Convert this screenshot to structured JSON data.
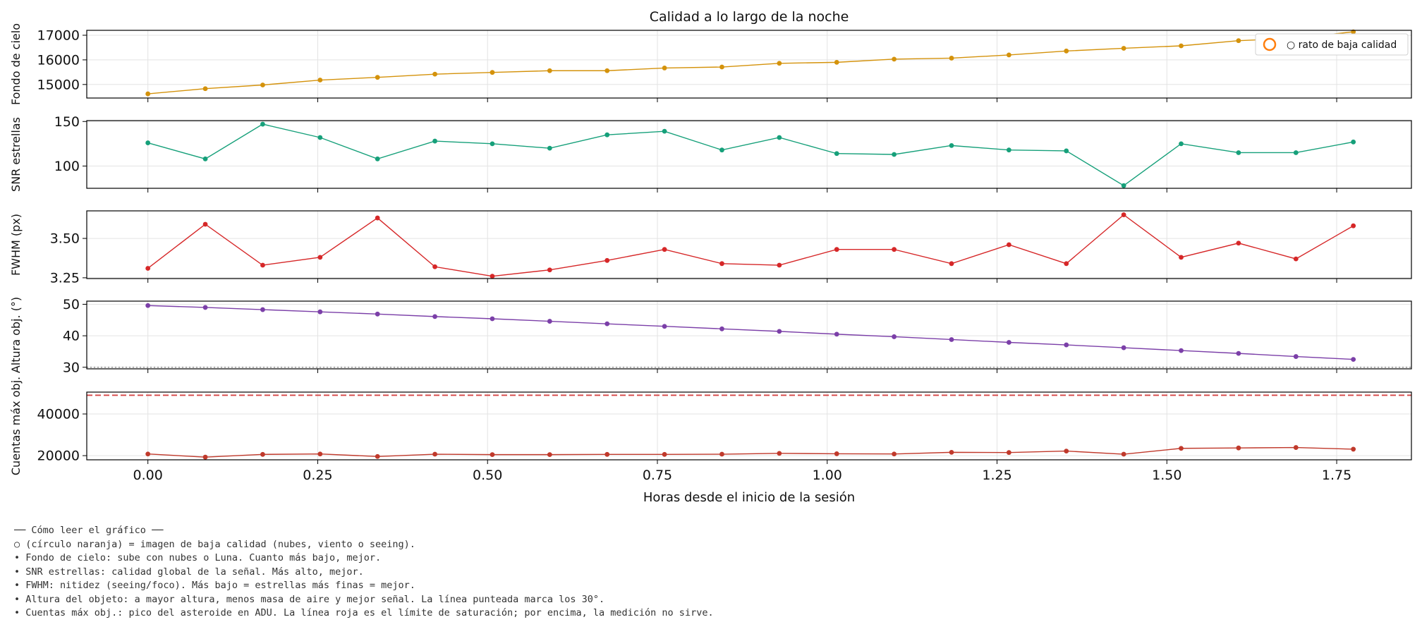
{
  "colors": {
    "sky": "#d4920b",
    "snr": "#16a07a",
    "fwhm": "#d62728",
    "alt": "#7b3fa8",
    "peak": "#c0392b",
    "saturation": "#d64545",
    "low_quality_marker": "#ff7f0e",
    "grid": "#e3e3e3"
  },
  "chart_data": {
    "type": "line",
    "title": "Calidad a lo largo de la noche",
    "xlabel": "Horas desde el inicio de la sesión",
    "xlim": [
      -0.09,
      1.86
    ],
    "x_ticks": [
      0.0,
      0.25,
      0.5,
      0.75,
      1.0,
      1.25,
      1.5,
      1.75
    ],
    "x_tick_labels": [
      "0.00",
      "0.25",
      "0.50",
      "0.75",
      "1.00",
      "1.25",
      "1.50",
      "1.75"
    ],
    "x": [
      0.0,
      0.0845,
      0.169,
      0.2535,
      0.338,
      0.4225,
      0.507,
      0.5915,
      0.676,
      0.7605,
      0.845,
      0.9295,
      1.014,
      1.0985,
      1.183,
      1.2675,
      1.352,
      1.4365,
      1.521,
      1.6055,
      1.69,
      1.7745
    ],
    "grid": true,
    "panels": [
      {
        "id": "sky",
        "ylabel": "Fondo de cielo",
        "ylim": [
          14450,
          17200
        ],
        "yticks": [
          15000,
          16000,
          17000
        ],
        "ytick_labels": [
          "15000",
          "16000",
          "17000"
        ],
        "color": "#d4920b",
        "values": [
          14620,
          14830,
          14980,
          15180,
          15290,
          15420,
          15490,
          15560,
          15560,
          15670,
          15710,
          15860,
          15900,
          16030,
          16070,
          16200,
          16360,
          16470,
          16570,
          16780,
          16880,
          17140
        ],
        "legend": {
          "label": "○ rato de baja calidad",
          "loc": "upper right"
        }
      },
      {
        "id": "snr",
        "ylabel": "SNR estrellas",
        "ylim": [
          75,
          151
        ],
        "yticks": [
          100,
          150
        ],
        "ytick_labels": [
          "100",
          "150"
        ],
        "color": "#16a07a",
        "values": [
          126,
          108,
          147,
          132,
          108,
          128,
          125,
          120,
          135,
          139,
          118,
          132,
          114,
          113,
          123,
          118,
          117,
          78,
          125,
          115,
          115,
          127
        ]
      },
      {
        "id": "fwhm",
        "ylabel": "FWHM (px)",
        "ylim": [
          3.245,
          3.675
        ],
        "yticks": [
          3.25,
          3.5
        ],
        "ytick_labels": [
          "3.25",
          "3.50"
        ],
        "color": "#d62728",
        "values": [
          3.31,
          3.59,
          3.33,
          3.38,
          3.63,
          3.32,
          3.26,
          3.3,
          3.36,
          3.43,
          3.34,
          3.33,
          3.43,
          3.43,
          3.34,
          3.46,
          3.34,
          3.65,
          3.38,
          3.47,
          3.37,
          3.58
        ]
      },
      {
        "id": "alt",
        "ylabel": "Altura obj. (°)",
        "ylim": [
          29.5,
          51.0
        ],
        "yticks": [
          30,
          40,
          50
        ],
        "ytick_labels": [
          "30",
          "40",
          "50"
        ],
        "color": "#7b3fa8",
        "values": [
          49.6,
          49.0,
          48.3,
          47.6,
          46.9,
          46.1,
          45.4,
          44.6,
          43.8,
          43.0,
          42.2,
          41.4,
          40.5,
          39.7,
          38.8,
          37.9,
          37.1,
          36.2,
          35.3,
          34.4,
          33.4,
          32.5
        ],
        "reference_line": {
          "y": 30,
          "style": "dotted",
          "color": "#888888"
        }
      },
      {
        "id": "peak",
        "ylabel": "Cuentas máx obj.",
        "ylim": [
          18000,
          50500
        ],
        "yticks": [
          20000,
          40000
        ],
        "ytick_labels": [
          "20000",
          "40000"
        ],
        "color": "#c0392b",
        "values": [
          20800,
          19300,
          20600,
          20800,
          19600,
          20700,
          20500,
          20500,
          20600,
          20600,
          20700,
          21100,
          20900,
          20800,
          21600,
          21500,
          22200,
          20700,
          23500,
          23700,
          23900,
          23100
        ],
        "reference_line": {
          "y": 49000,
          "style": "dashed",
          "color": "#d64545"
        }
      }
    ]
  },
  "notes": [
    "── Cómo leer el gráfico ──",
    "○ (círculo naranja) = imagen de baja calidad (nubes, viento o seeing).",
    "• Fondo de cielo: sube con nubes o Luna. Cuanto más bajo, mejor.",
    "• SNR estrellas: calidad global de la señal. Más alto, mejor.",
    "• FWHM: nitidez (seeing/foco). Más bajo = estrellas más finas = mejor.",
    "• Altura del objeto: a mayor altura, menos masa de aire y mejor señal. La línea punteada marca los 30°.",
    "• Cuentas máx obj.: pico del asteroide en ADU. La línea roja es el límite de saturación; por encima, la medición no sirve."
  ]
}
